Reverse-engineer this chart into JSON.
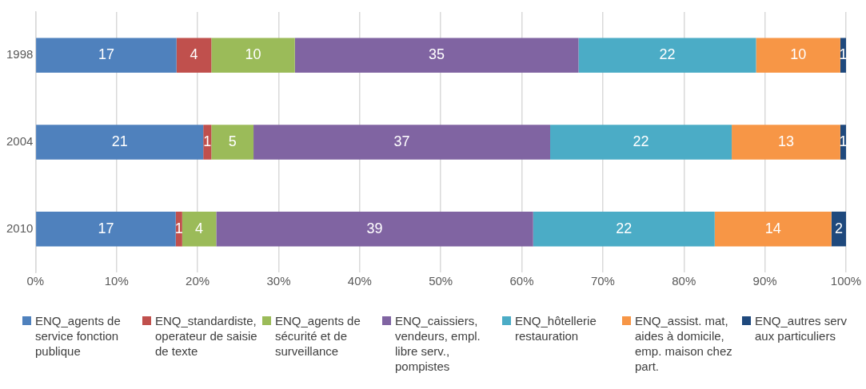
{
  "chart_data": {
    "type": "bar",
    "orientation": "horizontal",
    "stacked": true,
    "categories": [
      "1998",
      "2004",
      "2010"
    ],
    "series": [
      {
        "name": "ENQ_agents de service fonction publique",
        "color": "#4f81bd",
        "values": [
          17.4,
          20.7,
          17.3
        ],
        "value_labels": [
          "17",
          "21",
          "17"
        ]
      },
      {
        "name": "ENQ_standardiste, operateur de saisie de texte",
        "color": "#c0504d",
        "values": [
          4.3,
          1.0,
          0.8
        ],
        "value_labels": [
          "4",
          "1",
          "1"
        ]
      },
      {
        "name": "ENQ_agents de sécurité et de surveillance",
        "color": "#9bbb59",
        "values": [
          10.3,
          5.2,
          4.2
        ],
        "value_labels": [
          "10",
          "5",
          "4"
        ]
      },
      {
        "name": "ENQ_caissiers, vendeurs, empl. libre serv., pompistes",
        "color": "#8064a2",
        "values": [
          35.0,
          36.6,
          39.1
        ],
        "value_labels": [
          "35",
          "37",
          "39"
        ]
      },
      {
        "name": "ENQ_hôtellerie restauration",
        "color": "#4bacc6",
        "values": [
          21.9,
          22.4,
          22.4
        ],
        "value_labels": [
          "22",
          "22",
          "22"
        ]
      },
      {
        "name": "ENQ_assist. mat, aides à domicile, emp. maison chez part.",
        "color": "#f79646",
        "values": [
          10.4,
          13.4,
          14.4
        ],
        "value_labels": [
          "10",
          "13",
          "14"
        ]
      },
      {
        "name": "ENQ_autres serv aux particuliers",
        "color": "#1f497d",
        "values": [
          0.7,
          0.7,
          1.8
        ],
        "value_labels": [
          "1",
          "1",
          "2"
        ]
      }
    ],
    "xlim": [
      0,
      100
    ],
    "xticks": [
      {
        "value": 0,
        "label": "0%"
      },
      {
        "value": 10,
        "label": "10%"
      },
      {
        "value": 20,
        "label": "20%"
      },
      {
        "value": 30,
        "label": "30%"
      },
      {
        "value": 40,
        "label": "40%"
      },
      {
        "value": 50,
        "label": "50%"
      },
      {
        "value": 60,
        "label": "60%"
      },
      {
        "value": 70,
        "label": "70%"
      },
      {
        "value": 80,
        "label": "80%"
      },
      {
        "value": 90,
        "label": "90%"
      },
      {
        "value": 100,
        "label": "100%"
      }
    ],
    "grid": "x",
    "legend": "bottom"
  }
}
